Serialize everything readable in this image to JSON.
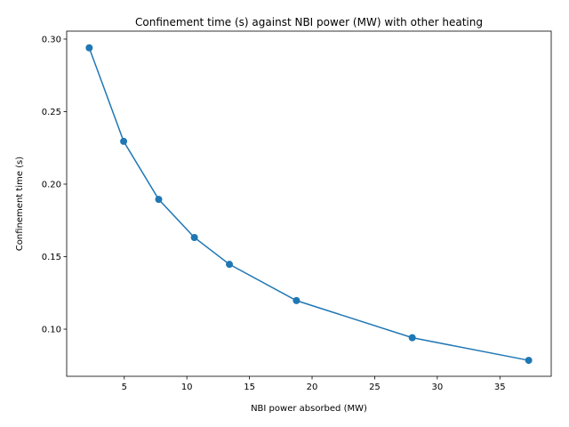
{
  "chart_data": {
    "type": "line",
    "title": "Confinement time (s) against NBI power (MW) with other heating",
    "xlabel": "NBI power absorbed (MW)",
    "ylabel": "Confinement time (s)",
    "xlim": [
      0.4,
      39.1
    ],
    "ylim": [
      0.0675,
      0.3055
    ],
    "xticks": [
      5,
      10,
      15,
      20,
      25,
      30,
      35
    ],
    "yticks": [
      0.1,
      0.15,
      0.2,
      0.25,
      0.3
    ],
    "xtick_labels": [
      "5",
      "10",
      "15",
      "20",
      "25",
      "30",
      "35"
    ],
    "ytick_labels": [
      "0.10",
      "0.15",
      "0.20",
      "0.25",
      "0.30"
    ],
    "grid": false,
    "color": "#1f77b4",
    "marker": "circle",
    "series": [
      {
        "x": [
          2.2,
          4.95,
          7.75,
          10.6,
          13.4,
          18.75,
          28.0,
          37.3
        ],
        "y": [
          0.294,
          0.2295,
          0.1895,
          0.1632,
          0.1447,
          0.1197,
          0.0941,
          0.0785
        ]
      }
    ]
  }
}
